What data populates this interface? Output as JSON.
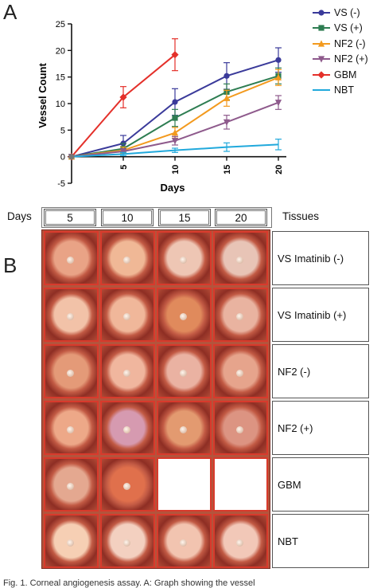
{
  "panel_labels": {
    "a": "A",
    "b": "B"
  },
  "chart_data": {
    "type": "line",
    "xlabel": "Days",
    "ylabel": "Vessel Count",
    "x": [
      0,
      5,
      10,
      15,
      20
    ],
    "xticks": [
      5,
      10,
      15,
      20
    ],
    "xlim": [
      0,
      20
    ],
    "ylim": [
      -5,
      25
    ],
    "yticks": [
      -5,
      0,
      5,
      10,
      15,
      20,
      25
    ],
    "legend_position": "right",
    "series": [
      {
        "name": "VS (-)",
        "marker": "circle",
        "color": "#3a3a9a",
        "x": [
          0,
          5,
          10,
          15,
          20
        ],
        "values": [
          0,
          2.5,
          10.3,
          15.2,
          18.2
        ],
        "errors": [
          0,
          1.5,
          2.5,
          2.5,
          2.3
        ]
      },
      {
        "name": "VS (+)",
        "marker": "square",
        "color": "#2e7d52",
        "x": [
          0,
          5,
          10,
          15,
          20
        ],
        "values": [
          0,
          1.5,
          7.3,
          12.2,
          15.2
        ],
        "errors": [
          0,
          1.0,
          1.6,
          1.5,
          1.5
        ]
      },
      {
        "name": "NF2 (-)",
        "marker": "triangle-up",
        "color": "#f39a1e",
        "x": [
          0,
          5,
          10,
          15,
          20
        ],
        "values": [
          0,
          1.2,
          4.5,
          11.0,
          14.9
        ],
        "errors": [
          0,
          0.6,
          1.0,
          1.5,
          1.5
        ]
      },
      {
        "name": "NF2 (+)",
        "marker": "triangle-down",
        "color": "#8e5a8c",
        "x": [
          0,
          5,
          10,
          15,
          20
        ],
        "values": [
          0,
          1.0,
          3.0,
          6.5,
          10.2
        ],
        "errors": [
          0,
          0.5,
          0.8,
          1.3,
          1.3
        ]
      },
      {
        "name": "GBM",
        "marker": "diamond",
        "color": "#e4302a",
        "x": [
          0,
          5,
          10
        ],
        "values": [
          0,
          11.2,
          19.2
        ],
        "errors": [
          0,
          2.0,
          3.0
        ]
      },
      {
        "name": "NBT",
        "marker": "none",
        "color": "#21a9dc",
        "x": [
          0,
          5,
          10,
          15,
          20
        ],
        "values": [
          0,
          0.5,
          1.2,
          1.8,
          2.3
        ],
        "errors": [
          0,
          0.3,
          0.4,
          0.8,
          1.0
        ]
      }
    ]
  },
  "panel_b": {
    "days_label": "Days",
    "days": [
      "5",
      "10",
      "15",
      "20"
    ],
    "tissues_label": "Tissues",
    "tissues": [
      "VS Imatinib (-)",
      "VS Imatinib (+)",
      "NF2 (-)",
      "NF2 (+)",
      "GBM",
      "NBT"
    ],
    "rows": [
      {
        "tissue": "VS Imatinib (-)",
        "cells": [
          {
            "day": "5",
            "present": true,
            "hue": "#e9a386"
          },
          {
            "day": "10",
            "present": true,
            "hue": "#f0b896"
          },
          {
            "day": "15",
            "present": true,
            "hue": "#eec6b4"
          },
          {
            "day": "20",
            "present": true,
            "hue": "#e8c4b6"
          }
        ]
      },
      {
        "tissue": "VS Imatinib (+)",
        "cells": [
          {
            "day": "5",
            "present": true,
            "hue": "#f2c2a8"
          },
          {
            "day": "10",
            "present": true,
            "hue": "#f0b79a"
          },
          {
            "day": "15",
            "present": true,
            "hue": "#e08a5c"
          },
          {
            "day": "20",
            "present": true,
            "hue": "#e9b3a0"
          }
        ]
      },
      {
        "tissue": "NF2 (-)",
        "cells": [
          {
            "day": "5",
            "present": true,
            "hue": "#e49a78"
          },
          {
            "day": "10",
            "present": true,
            "hue": "#f0b69e"
          },
          {
            "day": "15",
            "present": true,
            "hue": "#eab2a2"
          },
          {
            "day": "20",
            "present": true,
            "hue": "#e6a48c"
          }
        ]
      },
      {
        "tissue": "NF2 (+)",
        "cells": [
          {
            "day": "5",
            "present": true,
            "hue": "#eda888"
          },
          {
            "day": "10",
            "present": true,
            "hue": "#d69ab0"
          },
          {
            "day": "15",
            "present": true,
            "hue": "#e39a70"
          },
          {
            "day": "20",
            "present": true,
            "hue": "#dc9482"
          }
        ]
      },
      {
        "tissue": "GBM",
        "cells": [
          {
            "day": "5",
            "present": true,
            "hue": "#e4a890"
          },
          {
            "day": "10",
            "present": true,
            "hue": "#e0704c"
          },
          {
            "day": "15",
            "present": false,
            "hue": "#ffffff"
          },
          {
            "day": "20",
            "present": false,
            "hue": "#ffffff"
          }
        ]
      },
      {
        "tissue": "NBT",
        "cells": [
          {
            "day": "5",
            "present": true,
            "hue": "#f6cfb4"
          },
          {
            "day": "10",
            "present": true,
            "hue": "#f3d0c0"
          },
          {
            "day": "15",
            "present": true,
            "hue": "#f2c4b0"
          },
          {
            "day": "20",
            "present": true,
            "hue": "#f2c8b8"
          }
        ]
      }
    ]
  },
  "caption": "Fig. 1. Corneal angiogenesis assay. A: Graph showing the vessel"
}
